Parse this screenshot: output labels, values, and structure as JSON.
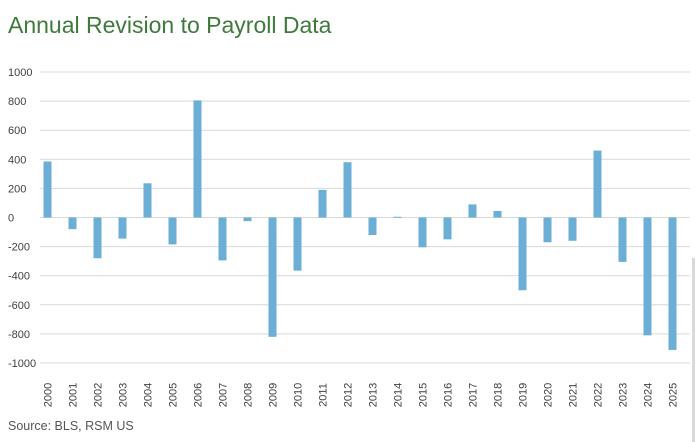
{
  "chart_data": {
    "type": "bar",
    "title": "Annual Revision to Payroll Data",
    "xlabel": "",
    "ylabel": "",
    "ylim": [
      -1000,
      1000
    ],
    "yticks": [
      1000,
      800,
      600,
      400,
      200,
      0,
      -200,
      -400,
      -600,
      -800,
      -1000
    ],
    "grid": true,
    "legend": "none",
    "bar_color": "#6baed6",
    "categories": [
      "2000",
      "2001",
      "2002",
      "2003",
      "2004",
      "2005",
      "2006",
      "2007",
      "2008",
      "2009",
      "2010",
      "2011",
      "2012",
      "2013",
      "2014",
      "2015",
      "2016",
      "2017",
      "2018",
      "2019",
      "2020",
      "2021",
      "2022",
      "2023",
      "2024",
      "2025"
    ],
    "values": [
      385,
      -80,
      -280,
      -145,
      235,
      -185,
      805,
      -295,
      -25,
      -820,
      -365,
      190,
      380,
      -120,
      5,
      -205,
      -150,
      90,
      45,
      -500,
      -170,
      -160,
      460,
      -305,
      -810,
      -910
    ]
  },
  "source": "Source: BLS, RSM US",
  "colors": {
    "title": "#3f7a3c",
    "bar": "#6baed6",
    "grid": "#d9d9d9"
  }
}
